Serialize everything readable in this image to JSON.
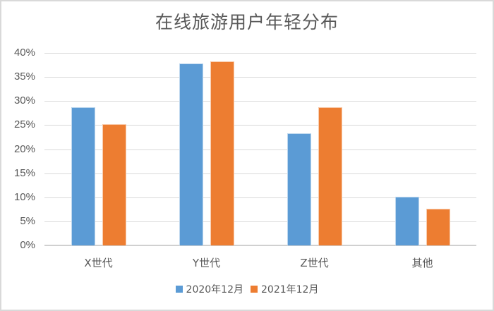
{
  "chart_data": {
    "type": "bar",
    "title": "在线旅游用户年轻分布",
    "xlabel": "",
    "ylabel": "",
    "categories": [
      "X世代",
      "Y世代",
      "Z世代",
      "其他"
    ],
    "series": [
      {
        "name": "2020年12月",
        "color": "#5b9bd5",
        "values": [
          28.7,
          37.8,
          23.3,
          10.1
        ]
      },
      {
        "name": "2021年12月",
        "color": "#ed7d31",
        "values": [
          25.2,
          38.2,
          28.7,
          7.6
        ]
      }
    ],
    "ylim": [
      0,
      40
    ],
    "yticks": [
      "0%",
      "5%",
      "10%",
      "15%",
      "20%",
      "25%",
      "30%",
      "35%",
      "40%"
    ],
    "grid": true,
    "legend_position": "bottom",
    "value_unit": "%"
  }
}
